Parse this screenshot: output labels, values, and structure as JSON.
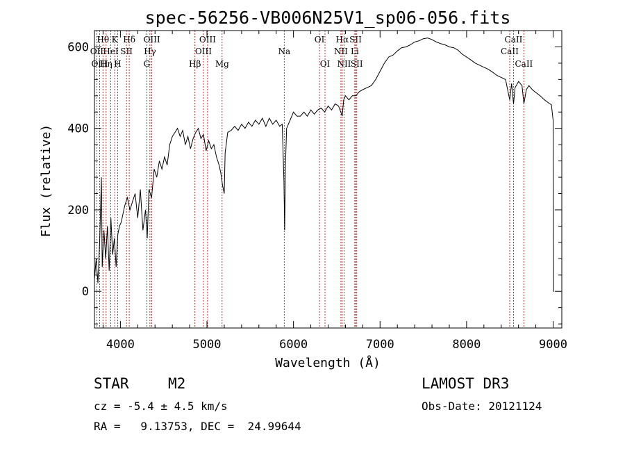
{
  "chart_data": {
    "type": "line",
    "title": "spec-56256-VB006N25V1_sp06-056.fits",
    "xlabel": "Wavelength (Å)",
    "ylabel": "Flux (relative)",
    "xlim": [
      3700,
      9100
    ],
    "ylim": [
      -90,
      640
    ],
    "x_ticks": [
      4000,
      5000,
      6000,
      7000,
      8000,
      9000
    ],
    "y_ticks": [
      0,
      200,
      400,
      600
    ],
    "spectrum": [
      [
        3700,
        30
      ],
      [
        3720,
        80
      ],
      [
        3740,
        20
      ],
      [
        3760,
        120
      ],
      [
        3780,
        280
      ],
      [
        3790,
        60
      ],
      [
        3810,
        150
      ],
      [
        3830,
        80
      ],
      [
        3850,
        160
      ],
      [
        3870,
        50
      ],
      [
        3890,
        180
      ],
      [
        3910,
        90
      ],
      [
        3930,
        130
      ],
      [
        3950,
        60
      ],
      [
        3970,
        140
      ],
      [
        3990,
        160
      ],
      [
        4010,
        170
      ],
      [
        4030,
        190
      ],
      [
        4050,
        210
      ],
      [
        4080,
        230
      ],
      [
        4110,
        200
      ],
      [
        4140,
        220
      ],
      [
        4170,
        240
      ],
      [
        4200,
        180
      ],
      [
        4230,
        250
      ],
      [
        4260,
        150
      ],
      [
        4290,
        200
      ],
      [
        4310,
        130
      ],
      [
        4330,
        250
      ],
      [
        4360,
        230
      ],
      [
        4390,
        300
      ],
      [
        4420,
        280
      ],
      [
        4450,
        320
      ],
      [
        4480,
        300
      ],
      [
        4510,
        330
      ],
      [
        4540,
        310
      ],
      [
        4570,
        360
      ],
      [
        4600,
        380
      ],
      [
        4630,
        390
      ],
      [
        4660,
        400
      ],
      [
        4690,
        380
      ],
      [
        4720,
        395
      ],
      [
        4750,
        360
      ],
      [
        4780,
        380
      ],
      [
        4810,
        350
      ],
      [
        4840,
        375
      ],
      [
        4870,
        390
      ],
      [
        4900,
        400
      ],
      [
        4930,
        375
      ],
      [
        4960,
        385
      ],
      [
        4990,
        345
      ],
      [
        5020,
        370
      ],
      [
        5050,
        350
      ],
      [
        5080,
        360
      ],
      [
        5110,
        330
      ],
      [
        5140,
        310
      ],
      [
        5160,
        290
      ],
      [
        5180,
        260
      ],
      [
        5200,
        240
      ],
      [
        5210,
        340
      ],
      [
        5240,
        390
      ],
      [
        5280,
        395
      ],
      [
        5320,
        405
      ],
      [
        5360,
        395
      ],
      [
        5400,
        410
      ],
      [
        5440,
        400
      ],
      [
        5480,
        415
      ],
      [
        5520,
        405
      ],
      [
        5560,
        420
      ],
      [
        5600,
        410
      ],
      [
        5640,
        425
      ],
      [
        5680,
        405
      ],
      [
        5720,
        425
      ],
      [
        5760,
        410
      ],
      [
        5800,
        420
      ],
      [
        5840,
        405
      ],
      [
        5870,
        410
      ],
      [
        5890,
        270
      ],
      [
        5898,
        150
      ],
      [
        5906,
        300
      ],
      [
        5920,
        400
      ],
      [
        5960,
        420
      ],
      [
        6000,
        440
      ],
      [
        6040,
        430
      ],
      [
        6080,
        430
      ],
      [
        6120,
        440
      ],
      [
        6160,
        430
      ],
      [
        6200,
        445
      ],
      [
        6240,
        435
      ],
      [
        6280,
        445
      ],
      [
        6320,
        450
      ],
      [
        6360,
        440
      ],
      [
        6400,
        455
      ],
      [
        6440,
        445
      ],
      [
        6480,
        460
      ],
      [
        6520,
        455
      ],
      [
        6563,
        430
      ],
      [
        6580,
        470
      ],
      [
        6600,
        480
      ],
      [
        6640,
        470
      ],
      [
        6680,
        480
      ],
      [
        6720,
        480
      ],
      [
        6760,
        490
      ],
      [
        6800,
        495
      ],
      [
        6850,
        500
      ],
      [
        6900,
        505
      ],
      [
        6950,
        520
      ],
      [
        7000,
        540
      ],
      [
        7050,
        560
      ],
      [
        7100,
        575
      ],
      [
        7150,
        580
      ],
      [
        7200,
        590
      ],
      [
        7250,
        598
      ],
      [
        7300,
        600
      ],
      [
        7350,
        605
      ],
      [
        7400,
        612
      ],
      [
        7450,
        615
      ],
      [
        7500,
        620
      ],
      [
        7550,
        622
      ],
      [
        7600,
        618
      ],
      [
        7650,
        612
      ],
      [
        7700,
        608
      ],
      [
        7750,
        605
      ],
      [
        7800,
        600
      ],
      [
        7850,
        598
      ],
      [
        7900,
        592
      ],
      [
        7950,
        582
      ],
      [
        8000,
        575
      ],
      [
        8050,
        568
      ],
      [
        8100,
        560
      ],
      [
        8150,
        555
      ],
      [
        8200,
        550
      ],
      [
        8250,
        545
      ],
      [
        8300,
        538
      ],
      [
        8350,
        530
      ],
      [
        8400,
        525
      ],
      [
        8450,
        520
      ],
      [
        8498,
        470
      ],
      [
        8520,
        510
      ],
      [
        8542,
        460
      ],
      [
        8560,
        500
      ],
      [
        8600,
        515
      ],
      [
        8640,
        505
      ],
      [
        8662,
        460
      ],
      [
        8690,
        495
      ],
      [
        8720,
        505
      ],
      [
        8760,
        495
      ],
      [
        8800,
        488
      ],
      [
        8850,
        480
      ],
      [
        8900,
        470
      ],
      [
        8950,
        462
      ],
      [
        8980,
        458
      ],
      [
        9000,
        420
      ],
      [
        9005,
        0
      ],
      [
        9010,
        0
      ]
    ],
    "lines": [
      {
        "name": "Hθ",
        "x": 3798,
        "row": 1
      },
      {
        "name": "OII",
        "x": 3727,
        "row": 2
      },
      {
        "name": "OIII",
        "x": 3760,
        "row": 3
      },
      {
        "name": "Hη",
        "x": 3835,
        "row": 3
      },
      {
        "name": "HeI",
        "x": 3889,
        "row": 2
      },
      {
        "name": "K",
        "x": 3934,
        "row": 1
      },
      {
        "name": "SII",
        "x": 4070,
        "row": 2
      },
      {
        "name": "H",
        "x": 3969,
        "row": 3
      },
      {
        "name": "Hδ",
        "x": 4102,
        "row": 1
      },
      {
        "name": "OIII",
        "x": 4363,
        "row": 1
      },
      {
        "name": "Hγ",
        "x": 4341,
        "row": 2
      },
      {
        "name": "G",
        "x": 4305,
        "row": 3
      },
      {
        "name": "Hβ",
        "x": 4861,
        "row": 3
      },
      {
        "name": "OIII",
        "x": 5007,
        "row": 1
      },
      {
        "name": "OIII",
        "x": 4959,
        "row": 2
      },
      {
        "name": "Mg",
        "x": 5175,
        "row": 3
      },
      {
        "name": "Na",
        "x": 5893,
        "row": 2
      },
      {
        "name": "OI",
        "x": 6300,
        "row": 1
      },
      {
        "name": "OI",
        "x": 6364,
        "row": 3
      },
      {
        "name": "Hα",
        "x": 6563,
        "row": 1
      },
      {
        "name": "NII",
        "x": 6548,
        "row": 2
      },
      {
        "name": "NII",
        "x": 6584,
        "row": 3
      },
      {
        "name": "SII",
        "x": 6717,
        "row": 1
      },
      {
        "name": "Li",
        "x": 6708,
        "row": 2
      },
      {
        "name": "SII",
        "x": 6731,
        "row": 3
      },
      {
        "name": "CaII",
        "x": 8542,
        "row": 1
      },
      {
        "name": "CaII",
        "x": 8498,
        "row": 2
      },
      {
        "name": "CaII",
        "x": 8662,
        "row": 3
      }
    ],
    "line_color": "#aa0000"
  },
  "info": {
    "object_class": "STAR",
    "subclass": "M2",
    "redshift": "cz = -5.4 ± 4.5 km/s",
    "coords": "RA =   9.13753, DEC =  24.99644",
    "survey": "LAMOST DR3",
    "obs_date": "Obs-Date: 20121124"
  }
}
